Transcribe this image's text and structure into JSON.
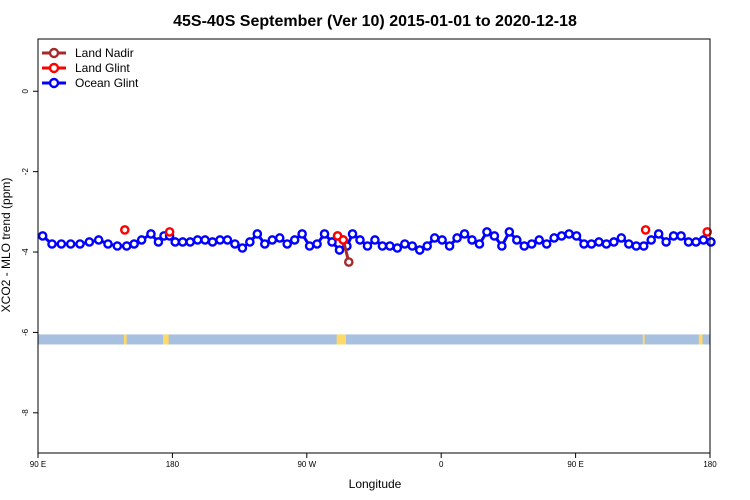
{
  "chart_data": {
    "type": "line",
    "title": "45S-40S September (Ver 10)   2015-01-01 to 2020-12-18",
    "xlabel": "Longitude",
    "ylabel": "XCO2 - MLO trend (ppm)",
    "xlim": [
      90,
      450
    ],
    "ylim": [
      -9,
      1.3
    ],
    "x_ticks": [
      {
        "value": 90,
        "label": "90 E"
      },
      {
        "value": 162,
        "label": "180"
      },
      {
        "value": 234,
        "label": "90 W"
      },
      {
        "value": 306,
        "label": "0"
      },
      {
        "value": 378,
        "label": "90 E"
      },
      {
        "value": 450,
        "label": "180"
      }
    ],
    "y_ticks": [
      {
        "value": 0,
        "label": "0"
      },
      {
        "value": -2,
        "label": "-2"
      },
      {
        "value": -4,
        "label": "-4"
      },
      {
        "value": -6,
        "label": "-6"
      },
      {
        "value": -8,
        "label": "-8"
      }
    ],
    "legend_position": "top-left",
    "grid": false,
    "series": [
      {
        "name": "Land Nadir",
        "color": "#a52a2a",
        "x": [
          250.5,
          253.5,
          256.5
        ],
        "y": [
          -3.6,
          -3.7,
          -4.25
        ]
      },
      {
        "name": "Land Glint",
        "color": "#ff0000",
        "x": [
          136.5,
          160.5,
          250.5,
          253.5,
          415.5,
          448.5
        ],
        "y": [
          -3.45,
          -3.5,
          -3.6,
          -3.7,
          -3.45,
          -3.5
        ]
      },
      {
        "name": "Ocean Glint",
        "color": "#0000ff",
        "x": [
          92.5,
          97.5,
          102.5,
          107.5,
          112.5,
          117.5,
          122.5,
          127.5,
          132.5,
          137.5,
          141.5,
          145.5,
          150.5,
          154.5,
          157.5,
          160.5,
          163.5,
          167.5,
          171.5,
          175.5,
          179.5,
          183.5,
          187.5,
          191.5,
          195.5,
          199.5,
          203.5,
          207.5,
          211.5,
          215.5,
          219.5,
          223.5,
          227.5,
          231.5,
          235.5,
          239.5,
          243.5,
          247.5,
          251.5,
          255.5,
          258.5,
          262.5,
          266.5,
          270.5,
          274.5,
          278.5,
          282.5,
          286.5,
          290.5,
          294.5,
          298.5,
          302.5,
          306.5,
          310.5,
          314.5,
          318.5,
          322.5,
          326.5,
          330.5,
          334.5,
          338.5,
          342.5,
          346.5,
          350.5,
          354.5,
          358.5,
          362.5,
          366.5,
          370.5,
          374.5,
          378.5,
          382.5,
          386.5,
          390.5,
          394.5,
          398.5,
          402.5,
          406.5,
          410.5,
          414.5,
          418.5,
          422.5,
          426.5,
          430.5,
          434.5,
          438.5,
          442.5,
          446.5,
          450.5
        ],
        "y": [
          -3.6,
          -3.8,
          -3.8,
          -3.8,
          -3.8,
          -3.75,
          -3.7,
          -3.8,
          -3.85,
          -3.85,
          -3.8,
          -3.7,
          -3.55,
          -3.75,
          -3.6,
          -3.6,
          -3.75,
          -3.75,
          -3.75,
          -3.7,
          -3.7,
          -3.75,
          -3.7,
          -3.7,
          -3.8,
          -3.9,
          -3.75,
          -3.55,
          -3.8,
          -3.7,
          -3.65,
          -3.8,
          -3.7,
          -3.55,
          -3.85,
          -3.8,
          -3.55,
          -3.75,
          -3.95,
          -3.85,
          -3.55,
          -3.7,
          -3.85,
          -3.7,
          -3.85,
          -3.85,
          -3.9,
          -3.8,
          -3.85,
          -3.95,
          -3.85,
          -3.65,
          -3.7,
          -3.85,
          -3.65,
          -3.55,
          -3.7,
          -3.8,
          -3.5,
          -3.6,
          -3.85,
          -3.5,
          -3.7,
          -3.85,
          -3.8,
          -3.7,
          -3.8,
          -3.65,
          -3.6,
          -3.55,
          -3.6,
          -3.8,
          -3.8,
          -3.75,
          -3.8,
          -3.75,
          -3.65,
          -3.8,
          -3.85,
          -3.85,
          -3.7,
          -3.55,
          -3.75,
          -3.6,
          -3.6,
          -3.75,
          -3.75,
          -3.7,
          -3.75
        ]
      }
    ],
    "land_band": {
      "y_range": [
        -6.3,
        -6.05
      ],
      "ocean_color": "#a8c0e0",
      "land_color": "#ffd966",
      "land_segments": [
        [
          136,
          137.5
        ],
        [
          157,
          160
        ],
        [
          250,
          255
        ],
        [
          414,
          415
        ],
        [
          444,
          446
        ]
      ]
    }
  }
}
